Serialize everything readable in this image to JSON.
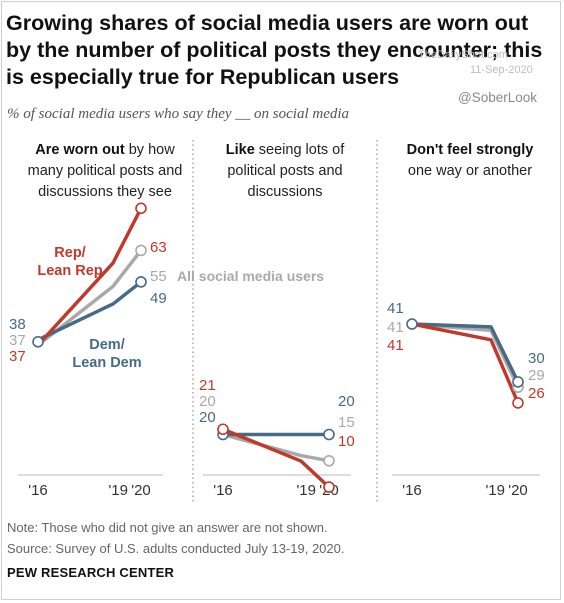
{
  "title": "Growing shares of social media users are worn out by the number of political posts they encounter; this is especially true for Republican users",
  "subtitle": "% of social media users who say they __ on social media",
  "watermark": {
    "site": "TheDailyShot.com",
    "date": "11-Sep-2020",
    "handle": "@SoberLook"
  },
  "note": "Note: Those who did not give an answer are not shown.",
  "source": "Source: Survey of U.S. adults conducted July 13-19, 2020.",
  "brand": "PEW RESEARCH CENTER",
  "colors": {
    "rep": "#c0392b",
    "dem": "#466b87",
    "all": "#a9a9a9"
  },
  "chart_data": [
    {
      "type": "line",
      "panel_title_bold": "Are worn out",
      "panel_title_rest": " by how many political posts and discussions they see",
      "x": [
        "'16",
        "'19",
        "'20"
      ],
      "series": [
        {
          "name": "Rep/ Lean Rep",
          "key": "rep",
          "values": [
            37,
            null,
            63
          ]
        },
        {
          "name": "All social media users",
          "key": "all",
          "values": [
            37,
            null,
            55
          ]
        },
        {
          "name": "Dem/ Lean Dem",
          "key": "dem",
          "values": [
            38,
            null,
            49
          ]
        }
      ]
    },
    {
      "type": "line",
      "panel_title_bold": "Like",
      "panel_title_rest": " seeing lots of political posts and discussions",
      "x": [
        "'16",
        "'19",
        "'20"
      ],
      "series": [
        {
          "name": "Rep/ Lean Rep",
          "key": "rep",
          "values": [
            21,
            null,
            10
          ]
        },
        {
          "name": "All social media users",
          "key": "all",
          "values": [
            20,
            null,
            15
          ]
        },
        {
          "name": "Dem/ Lean Dem",
          "key": "dem",
          "values": [
            20,
            null,
            20
          ]
        }
      ]
    },
    {
      "type": "line",
      "panel_title_bold": "Don't feel strongly",
      "panel_title_rest": " one way or another",
      "x": [
        "'16",
        "'19",
        "'20"
      ],
      "series": [
        {
          "name": "Rep/ Lean Rep",
          "key": "rep",
          "values": [
            41,
            null,
            26
          ]
        },
        {
          "name": "All social media users",
          "key": "all",
          "values": [
            41,
            null,
            29
          ]
        },
        {
          "name": "Dem/ Lean Dem",
          "key": "dem",
          "values": [
            41,
            null,
            30
          ]
        }
      ]
    }
  ],
  "labels": {
    "rep": "Rep/\nLean Rep",
    "dem": "Dem/\nLean Dem",
    "all": "All social media users"
  }
}
